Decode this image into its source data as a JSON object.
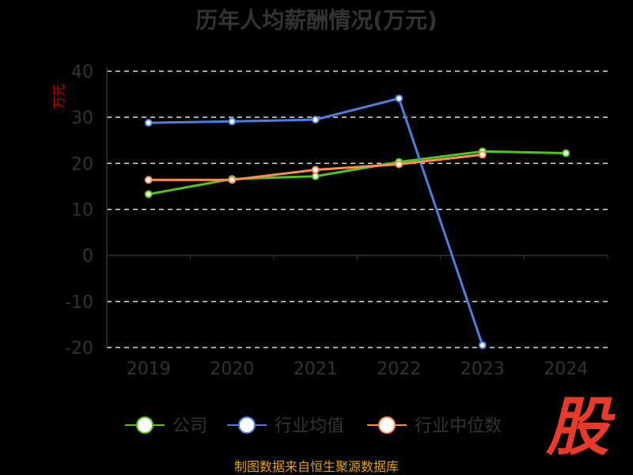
{
  "chart_data": {
    "type": "line",
    "title": "历年人均薪酬情况(万元)",
    "ylabel": "万元",
    "x": [
      "2019",
      "2020",
      "2021",
      "2022",
      "2023",
      "2024"
    ],
    "ylim": [
      -20,
      40
    ],
    "yticks": [
      40,
      30,
      20,
      10,
      0,
      -10,
      -20
    ],
    "grid": true,
    "legend_position": "bottom",
    "series": [
      {
        "name": "公司",
        "color": "#52c41a",
        "values": [
          13.3,
          16.6,
          17.2,
          20.3,
          22.6,
          22.2
        ]
      },
      {
        "name": "行业均值",
        "color": "#4a7fe0",
        "values": [
          28.8,
          29.1,
          29.5,
          34.1,
          -19.5,
          null
        ]
      },
      {
        "name": "行业中位数",
        "color": "#ff8c50",
        "values": [
          16.4,
          16.4,
          18.6,
          19.8,
          21.9,
          null
        ]
      }
    ]
  },
  "source": "制图数据来自恒生聚源数据库",
  "logo": "股"
}
